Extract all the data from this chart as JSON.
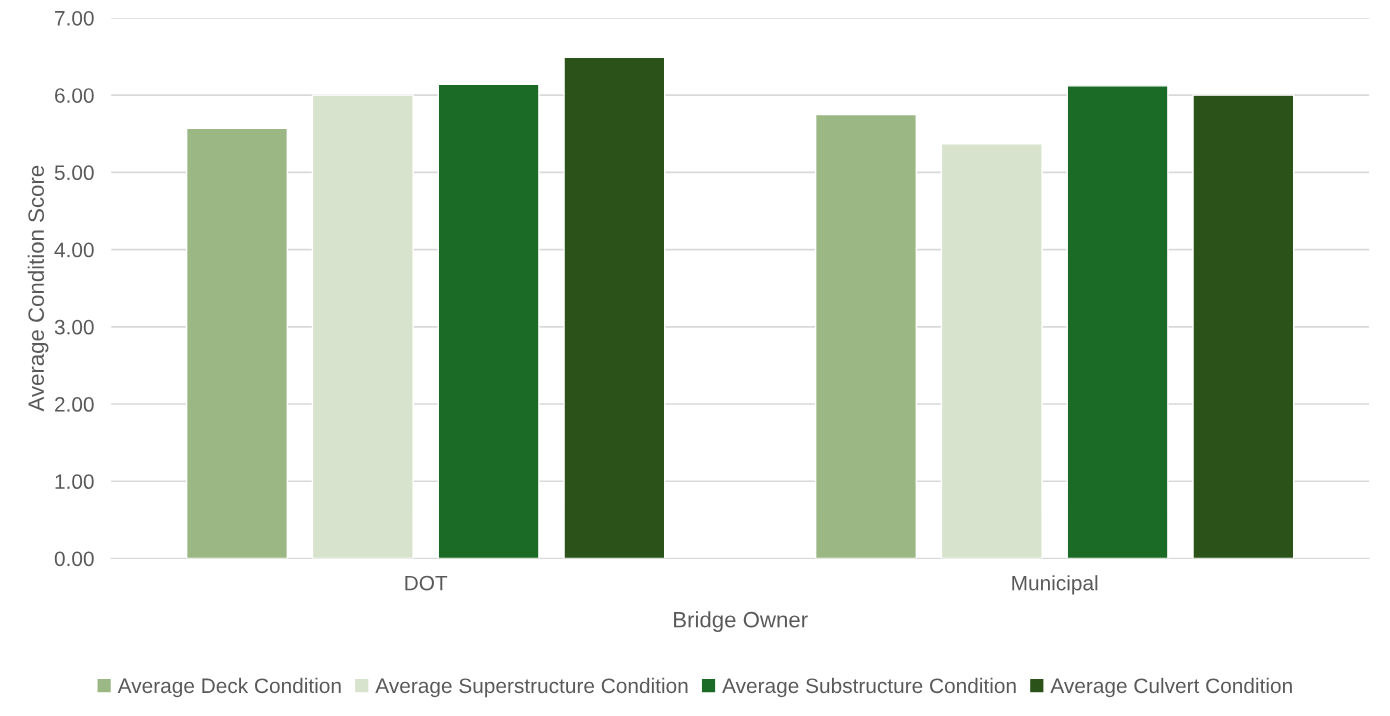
{
  "chart_data": {
    "type": "bar",
    "xlabel": "Bridge Owner",
    "ylabel": "Average Condition Score",
    "categories": [
      "DOT",
      "Municipal"
    ],
    "series": [
      {
        "name": "Average Deck Condition",
        "color": "#9bb784",
        "values": [
          5.57,
          5.75
        ]
      },
      {
        "name": "Average Superstructure Condition",
        "color": "#d7e3cc",
        "values": [
          6.0,
          5.37
        ]
      },
      {
        "name": "Average Substructure Condition",
        "color": "#1b6a25",
        "values": [
          6.14,
          6.12
        ]
      },
      {
        "name": "Average Culvert Condition",
        "color": "#2a5219",
        "values": [
          6.49,
          6.0
        ]
      }
    ],
    "ylim": [
      0,
      7
    ],
    "yticks": [
      {
        "value": 0,
        "label": "0.00"
      },
      {
        "value": 1,
        "label": "1.00"
      },
      {
        "value": 2,
        "label": "2.00"
      },
      {
        "value": 3,
        "label": "3.00"
      },
      {
        "value": 4,
        "label": "4.00"
      },
      {
        "value": 5,
        "label": "5.00"
      },
      {
        "value": 6,
        "label": "6.00"
      },
      {
        "value": 7,
        "label": "7.00"
      }
    ],
    "grid": "y",
    "legend": "bottom"
  }
}
